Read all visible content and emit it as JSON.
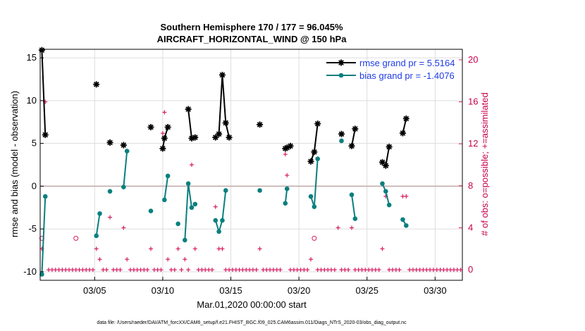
{
  "chart_data": {
    "type": "line",
    "title": [
      "Southern Hemisphere 170 / 177 = 96.045%",
      "AIRCRAFT_HORIZONTAL_WIND @ 150 hPa"
    ],
    "xlabel": "Mar.01,2020 00:00:00 start",
    "ylabel": "rmse and bias (model - observation)",
    "ylabel_right": "# of obs: o=possible; +=assimilated",
    "x_unit": "day of March 2020",
    "xlim": [
      1,
      32
    ],
    "ylim": [
      -11,
      16
    ],
    "ylim_right": [
      -1,
      21
    ],
    "x_ticks": [
      5,
      10,
      15,
      20,
      25,
      30
    ],
    "x_tick_labels": [
      "03/05",
      "03/10",
      "03/15",
      "03/20",
      "03/25",
      "03/30"
    ],
    "y_ticks": [
      -10,
      -5,
      0,
      5,
      10,
      15
    ],
    "y_tick_labels": [
      "-10",
      "-5",
      "0",
      "5",
      "10",
      "15"
    ],
    "y_ticks_right": [
      0,
      4,
      8,
      12,
      16,
      20
    ],
    "y_tick_labels_right": [
      "0",
      "4",
      "8",
      "12",
      "16",
      "20"
    ],
    "grid": true,
    "legend_position": "top-right",
    "colors": {
      "rmse": "#000000",
      "bias": "#0a7f7f",
      "obs": "#d81b60",
      "zero": "#c0a8a8",
      "grid": "#dddddd"
    },
    "series": [
      {
        "name": "rmse grand pr = 5.5164",
        "color": "#000000",
        "segments": [
          [
            [
              1.125,
              15.9
            ],
            [
              1.375,
              6.0
            ]
          ],
          [
            [
              5.125,
              11.9
            ]
          ],
          [
            [
              6.125,
              5.1
            ]
          ],
          [
            [
              7.125,
              4.8
            ]
          ],
          [
            [
              9.125,
              6.9
            ]
          ],
          [
            [
              10.0,
              4.4
            ],
            [
              10.125,
              5.6
            ],
            [
              10.375,
              6.9
            ]
          ],
          [
            [
              11.875,
              9.0
            ],
            [
              12.125,
              5.6
            ],
            [
              12.375,
              5.7
            ]
          ],
          [
            [
              13.875,
              5.7
            ],
            [
              14.125,
              6.1
            ],
            [
              14.375,
              13.0
            ],
            [
              14.625,
              7.4
            ],
            [
              14.875,
              5.7
            ]
          ],
          [
            [
              17.125,
              7.2
            ]
          ],
          [
            [
              19.0,
              4.4
            ],
            [
              19.125,
              4.5
            ],
            [
              19.375,
              4.7
            ]
          ],
          [
            [
              20.875,
              2.9
            ],
            [
              21.125,
              4.0
            ],
            [
              21.375,
              7.3
            ]
          ],
          [
            [
              23.125,
              6.1
            ]
          ],
          [
            [
              23.875,
              4.7
            ],
            [
              24.125,
              6.7
            ]
          ],
          [
            [
              26.125,
              2.8
            ],
            [
              26.375,
              2.4
            ],
            [
              26.625,
              4.6
            ]
          ],
          [
            [
              27.625,
              6.2
            ],
            [
              27.875,
              7.9
            ]
          ]
        ]
      },
      {
        "name": "bias grand pr = -1.4076",
        "color": "#0a7f7f",
        "segments": [
          [
            [
              1.125,
              -10.3
            ],
            [
              1.375,
              -1.2
            ]
          ],
          [
            [
              5.125,
              -5.8
            ],
            [
              5.375,
              -3.2
            ]
          ],
          [
            [
              6.125,
              -0.6
            ]
          ],
          [
            [
              7.125,
              -0.1
            ],
            [
              7.375,
              4.1
            ]
          ],
          [
            [
              9.125,
              -2.9
            ]
          ],
          [
            [
              10.125,
              -1.6
            ],
            [
              10.375,
              1.2
            ]
          ],
          [
            [
              11.125,
              -4.4
            ]
          ],
          [
            [
              11.625,
              -6.3
            ],
            [
              11.875,
              0.3
            ],
            [
              12.125,
              -2.5
            ]
          ],
          [
            [
              12.375,
              -2.1
            ]
          ],
          [
            [
              13.875,
              -4.0
            ],
            [
              14.125,
              -5.3
            ],
            [
              14.375,
              -4.0
            ],
            [
              14.625,
              -0.5
            ]
          ],
          [
            [
              17.125,
              -0.5
            ]
          ],
          [
            [
              19.0,
              -2.0
            ],
            [
              19.125,
              -0.3
            ]
          ],
          [
            [
              20.875,
              -1.2
            ],
            [
              21.125,
              -2.4
            ],
            [
              21.375,
              3.2
            ]
          ],
          [
            [
              23.125,
              5.3
            ]
          ],
          [
            [
              23.875,
              -1.0
            ],
            [
              24.125,
              -3.8
            ]
          ],
          [
            [
              26.125,
              0.3
            ],
            [
              26.375,
              -0.6
            ],
            [
              26.625,
              -2.2
            ]
          ],
          [
            [
              27.625,
              -3.9
            ],
            [
              27.875,
              -4.6
            ]
          ]
        ]
      },
      {
        "name": "",
        "color": "#d81b60",
        "marker": "+ assimilated",
        "axis": "right",
        "points": [
          [
            1.125,
            2.0
          ],
          [
            1.375,
            16.0
          ],
          [
            1.625,
            0
          ],
          [
            1.875,
            0
          ],
          [
            2.125,
            0
          ],
          [
            2.375,
            0
          ],
          [
            2.625,
            0
          ],
          [
            2.875,
            0
          ],
          [
            3.125,
            0
          ],
          [
            3.375,
            0
          ],
          [
            3.625,
            0
          ],
          [
            3.875,
            0
          ],
          [
            4.125,
            0
          ],
          [
            4.375,
            0
          ],
          [
            4.625,
            0
          ],
          [
            4.875,
            0
          ],
          [
            5.125,
            2.0
          ],
          [
            5.375,
            1.0
          ],
          [
            5.625,
            0
          ],
          [
            5.875,
            0
          ],
          [
            6.125,
            5.0
          ],
          [
            6.375,
            0
          ],
          [
            6.625,
            0
          ],
          [
            6.875,
            0
          ],
          [
            7.125,
            4.0
          ],
          [
            7.375,
            1.0
          ],
          [
            7.625,
            0
          ],
          [
            7.875,
            0
          ],
          [
            8.125,
            0
          ],
          [
            8.375,
            0
          ],
          [
            8.625,
            0
          ],
          [
            8.875,
            0
          ],
          [
            9.125,
            2.0
          ],
          [
            9.375,
            0
          ],
          [
            9.625,
            0
          ],
          [
            9.875,
            0
          ],
          [
            10.0,
            13.0
          ],
          [
            10.125,
            15.0
          ],
          [
            10.375,
            1.0
          ],
          [
            10.625,
            0
          ],
          [
            10.875,
            0
          ],
          [
            11.125,
            2.0
          ],
          [
            11.375,
            0
          ],
          [
            11.625,
            1.0
          ],
          [
            11.875,
            0
          ],
          [
            12.125,
            10.0
          ],
          [
            12.375,
            2.0
          ],
          [
            12.625,
            0
          ],
          [
            12.875,
            0
          ],
          [
            13.125,
            0
          ],
          [
            13.375,
            0
          ],
          [
            13.625,
            0
          ],
          [
            13.875,
            6.0
          ],
          [
            14.125,
            2.0
          ],
          [
            14.375,
            2.0
          ],
          [
            14.625,
            0
          ],
          [
            14.875,
            0
          ],
          [
            15.125,
            0
          ],
          [
            15.375,
            0
          ],
          [
            15.625,
            0
          ],
          [
            15.875,
            0
          ],
          [
            16.125,
            0
          ],
          [
            16.375,
            0
          ],
          [
            16.625,
            0
          ],
          [
            16.875,
            0
          ],
          [
            17.125,
            2.0
          ],
          [
            17.375,
            0
          ],
          [
            17.625,
            0
          ],
          [
            17.875,
            0
          ],
          [
            18.125,
            0
          ],
          [
            18.375,
            0
          ],
          [
            18.625,
            0
          ],
          [
            19.0,
            11.0
          ],
          [
            19.125,
            9.0
          ],
          [
            19.375,
            0
          ],
          [
            19.625,
            0
          ],
          [
            19.875,
            0
          ],
          [
            20.125,
            0
          ],
          [
            20.375,
            0
          ],
          [
            20.625,
            0
          ],
          [
            20.875,
            1.0
          ],
          [
            21.125,
            6.0
          ],
          [
            21.375,
            0
          ],
          [
            21.625,
            0
          ],
          [
            21.875,
            0
          ],
          [
            22.125,
            0
          ],
          [
            22.375,
            0
          ],
          [
            22.625,
            0
          ],
          [
            22.875,
            4.0
          ],
          [
            23.125,
            0
          ],
          [
            23.375,
            0
          ],
          [
            23.625,
            0
          ],
          [
            23.875,
            4.0
          ],
          [
            24.125,
            0
          ],
          [
            24.375,
            0
          ],
          [
            24.625,
            0
          ],
          [
            24.875,
            0
          ],
          [
            25.125,
            0
          ],
          [
            25.375,
            0
          ],
          [
            25.625,
            0
          ],
          [
            25.875,
            0
          ],
          [
            26.125,
            2.0
          ],
          [
            26.375,
            7.0
          ],
          [
            26.625,
            0
          ],
          [
            26.875,
            0
          ],
          [
            27.125,
            0
          ],
          [
            27.375,
            0
          ],
          [
            27.625,
            7.0
          ],
          [
            27.875,
            7.0
          ],
          [
            28.125,
            0
          ],
          [
            28.375,
            0
          ],
          [
            28.625,
            0
          ],
          [
            28.875,
            0
          ],
          [
            29.125,
            0
          ],
          [
            29.375,
            0
          ],
          [
            29.625,
            0
          ],
          [
            29.875,
            0
          ],
          [
            30.125,
            0
          ],
          [
            30.375,
            0
          ],
          [
            30.625,
            0
          ],
          [
            30.875,
            0
          ],
          [
            31.125,
            0
          ],
          [
            31.375,
            0
          ],
          [
            31.625,
            0
          ],
          [
            31.875,
            0
          ]
        ]
      },
      {
        "name": "",
        "color": "#d81b60",
        "marker": "o possible",
        "axis": "right",
        "points": [
          [
            1.125,
            3.0
          ],
          [
            3.625,
            3.0
          ],
          [
            21.125,
            3.0
          ]
        ]
      }
    ],
    "footnote": "data file: /Users/raeder/DAI/ATM_forcXX/CAM6_setup/f.e21.FHIST_BGC.f09_025.CAM6assim.011/Diags_NTrS_2020-03/obs_diag_output.nc"
  }
}
